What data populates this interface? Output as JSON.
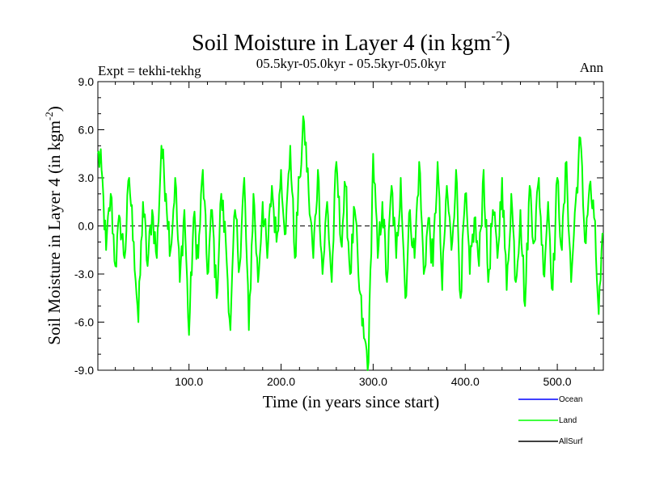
{
  "chart_data": {
    "type": "line",
    "title": "Soil Moisture in Layer 4 (in kgm",
    "title_sup": "-2",
    "title_close": ")",
    "subtitle": "05.5kyr-05.0kyr - 05.5kyr-05.0kyr",
    "left_label": "Expt = tekhi-tekhg",
    "right_label": "Ann",
    "xlabel": "Time (in years since start)",
    "ylabel": "Soil Moisture in Layer 4 (in kgm",
    "ylabel_sup": "-2",
    "ylabel_close": ")",
    "xlim": [
      1,
      550
    ],
    "ylim": [
      -9,
      9
    ],
    "xticks": [
      100,
      200,
      300,
      400,
      500
    ],
    "xtick_labels": [
      "100.0",
      "200.0",
      "300.0",
      "400.0",
      "500.0"
    ],
    "yticks": [
      -9,
      -6,
      -3,
      0,
      3,
      6,
      9
    ],
    "ytick_labels": [
      "-9.0",
      "-6.0",
      "-3.0",
      "0.0",
      "3.0",
      "6.0",
      "9.0"
    ],
    "zero_line": "dashed",
    "legend": [
      {
        "name": "Ocean",
        "color": "#0000ff"
      },
      {
        "name": "Land",
        "color": "#00ff00"
      },
      {
        "name": "AllSurf",
        "color": "#000000"
      }
    ],
    "series": [
      {
        "name": "Land",
        "color": "#00ff00",
        "x": [
          1,
          5,
          10,
          15,
          20,
          25,
          30,
          35,
          40,
          45,
          50,
          55,
          60,
          65,
          70,
          75,
          80,
          85,
          90,
          95,
          100,
          105,
          110,
          115,
          120,
          125,
          130,
          135,
          140,
          145,
          150,
          155,
          160,
          165,
          170,
          175,
          180,
          185,
          190,
          195,
          200,
          205,
          210,
          215,
          220,
          225,
          230,
          235,
          240,
          245,
          250,
          255,
          260,
          265,
          270,
          275,
          280,
          285,
          290,
          295,
          300,
          305,
          310,
          315,
          320,
          325,
          330,
          335,
          340,
          345,
          350,
          355,
          360,
          365,
          370,
          375,
          380,
          385,
          390,
          395,
          400,
          405,
          410,
          415,
          420,
          425,
          430,
          435,
          440,
          445,
          450,
          455,
          460,
          465,
          470,
          475,
          480,
          485,
          490,
          495,
          500,
          505,
          510,
          515,
          520,
          525,
          530,
          535,
          540,
          545,
          550
        ],
        "values": [
          4.5,
          3.5,
          -1.5,
          2.0,
          -2.5,
          0.5,
          -2.0,
          3.0,
          -1.0,
          -6.0,
          1.5,
          -2.5,
          1.0,
          -2.0,
          5.0,
          2.0,
          -1.5,
          3.0,
          -3.5,
          1.0,
          -6.8,
          0.5,
          -2.0,
          3.5,
          -3.0,
          1.0,
          -4.5,
          2.0,
          -1.0,
          -6.5,
          1.0,
          -2.5,
          3.0,
          -6.5,
          2.0,
          -3.5,
          1.5,
          -2.0,
          2.5,
          -1.0,
          3.5,
          -0.5,
          5.0,
          -2.0,
          3.0,
          6.5,
          2.0,
          -2.0,
          3.5,
          -3.0,
          1.5,
          -3.5,
          4.0,
          -1.0,
          2.5,
          -3.0,
          1.0,
          -4.0,
          -7.0,
          -8.5,
          4.5,
          -2.0,
          1.5,
          -3.5,
          2.5,
          -2.0,
          3.0,
          -4.5,
          1.0,
          -2.0,
          4.0,
          -3.0,
          0.5,
          -2.5,
          4.0,
          -4.0,
          2.5,
          -1.5,
          3.5,
          -4.5,
          2.0,
          -3.0,
          0.5,
          -2.5,
          3.5,
          -3.5,
          1.0,
          -2.0,
          3.0,
          -4.0,
          2.0,
          -3.5,
          1.0,
          -5.0,
          2.5,
          -1.0,
          3.0,
          -3.0,
          1.5,
          -4.0,
          3.0,
          -1.5,
          4.0,
          -3.5,
          1.5,
          5.5,
          -1.0,
          2.5,
          0.5,
          -5.5,
          -0.5
        ]
      }
    ]
  }
}
